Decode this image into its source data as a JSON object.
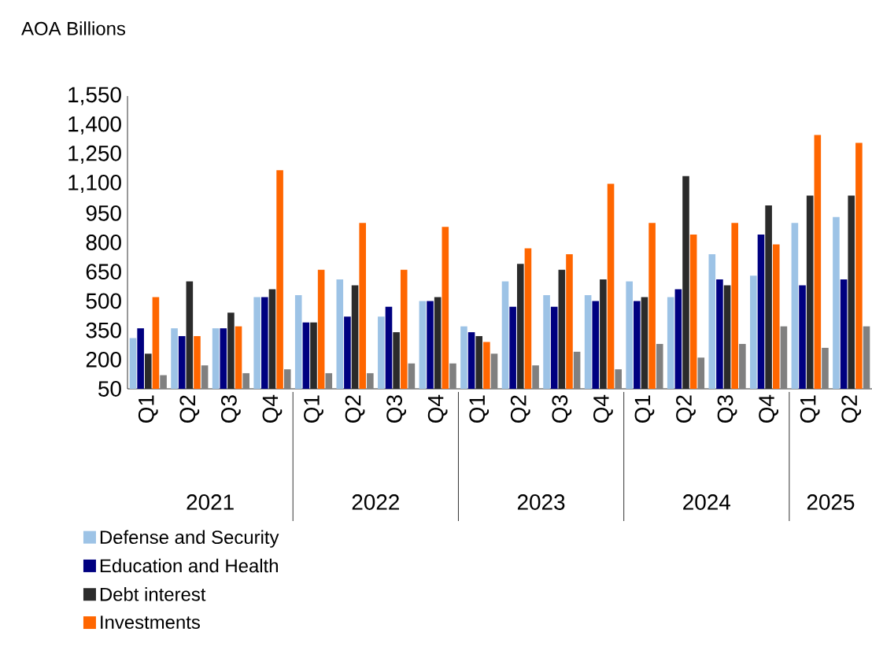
{
  "chart_data": {
    "type": "bar",
    "title": "AOA Billions",
    "categories": [
      "Q1",
      "Q2",
      "Q3",
      "Q4",
      "Q1",
      "Q2",
      "Q3",
      "Q4",
      "Q1",
      "Q2",
      "Q3",
      "Q4",
      "Q1",
      "Q2",
      "Q3",
      "Q4",
      "Q1",
      "Q2"
    ],
    "annotations": [
      "2021",
      "2022",
      "2023",
      "2024",
      "2025"
    ],
    "ylim": [
      50,
      1550
    ],
    "yticks": [
      {
        "value": 50,
        "label": "50"
      },
      {
        "value": 200,
        "label": "200"
      },
      {
        "value": 350,
        "label": "350"
      },
      {
        "value": 500,
        "label": "500"
      },
      {
        "value": 650,
        "label": "650"
      },
      {
        "value": 800,
        "label": "800"
      },
      {
        "value": 950,
        "label": "950"
      },
      {
        "value": 1100,
        "label": "1,100"
      },
      {
        "value": 1250,
        "label": "1,250"
      },
      {
        "value": 1400,
        "label": "1,400"
      },
      {
        "value": 1550,
        "label": "1,550"
      }
    ],
    "series": [
      {
        "name": "Defense and Security",
        "color": "#9dc3e6",
        "values": [
          310,
          360,
          360,
          520,
          530,
          610,
          420,
          500,
          370,
          600,
          530,
          530,
          600,
          520,
          740,
          630,
          900,
          930
        ]
      },
      {
        "name": "Education and Health",
        "color": "#000080",
        "values": [
          360,
          320,
          360,
          520,
          390,
          420,
          470,
          500,
          340,
          470,
          470,
          500,
          500,
          560,
          610,
          840,
          580,
          610
        ]
      },
      {
        "name": "Debt interest",
        "color": "#2b2b2b",
        "values": [
          230,
          600,
          440,
          560,
          390,
          580,
          340,
          520,
          320,
          690,
          660,
          610,
          520,
          1140,
          580,
          990,
          1040,
          1040
        ]
      },
      {
        "name": "Investments",
        "color": "#ff6600",
        "values": [
          520,
          320,
          370,
          1170,
          660,
          900,
          660,
          880,
          290,
          770,
          740,
          1100,
          900,
          840,
          900,
          790,
          1350,
          1310
        ]
      },
      {
        "color": "#808080",
        "values": [
          120,
          170,
          130,
          150,
          130,
          130,
          180,
          180,
          230,
          170,
          240,
          150,
          280,
          210,
          280,
          370,
          260,
          370
        ]
      }
    ],
    "legend": "bottom",
    "grid": false
  }
}
